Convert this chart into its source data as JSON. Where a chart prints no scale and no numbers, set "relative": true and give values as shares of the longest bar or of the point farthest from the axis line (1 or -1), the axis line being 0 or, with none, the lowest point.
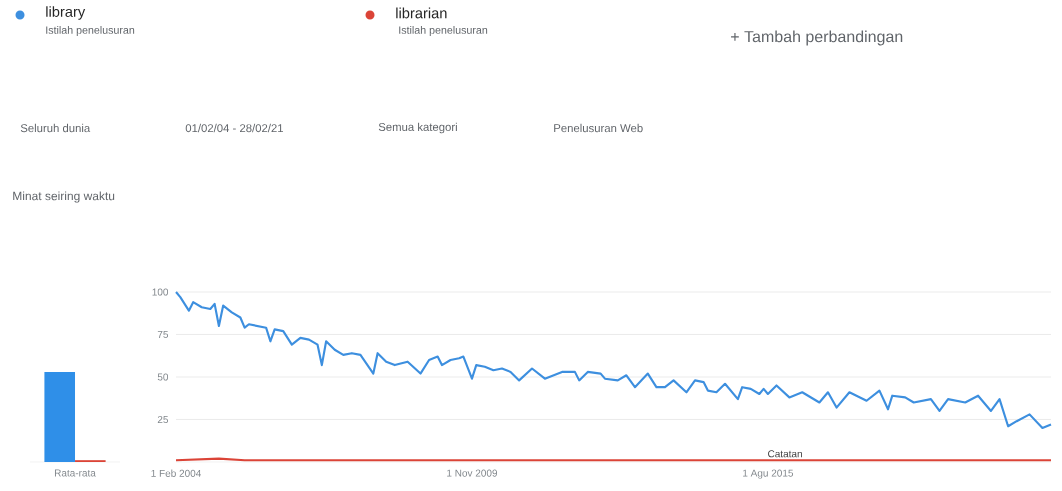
{
  "chart_data": [
    {
      "type": "bar",
      "categories": [
        "Rata-rata"
      ],
      "relative": true,
      "series": [
        {
          "color": "#2f8fe8",
          "values": [
            1
          ]
        },
        {
          "color": "#db4437",
          "values": [
            0.02
          ]
        }
      ]
    },
    {
      "type": "line",
      "title": "Minat seiring waktu",
      "legend": "top",
      "grid": "y",
      "annotations": [
        "Istilah penelusuran",
        "Istilah penelusuran",
        "+   Tambah perbandingan",
        "Seluruh dunia",
        "01/02/04 - 28/02/21",
        "Semua kategori",
        "Penelusuran Web",
        {
          "text": "Catatan",
          "x": "2015-12",
          "y": 1
        }
      ],
      "xlim": [
        "2004-02",
        "2021-02"
      ],
      "ylim": [
        0,
        100
      ],
      "xticks": [
        {
          "value": "2004-02-01",
          "label": "1 Feb 2004"
        },
        {
          "value": "2009-11-01",
          "label": "1 Nov 2009"
        },
        {
          "value": "2015-08-01",
          "label": "1 Agu 2015"
        }
      ],
      "yticks": [
        25,
        50,
        75,
        100
      ],
      "series": [
        {
          "name": "library",
          "color": "#3d8fdf",
          "x": [
            "2004-02",
            "2004-03",
            "2004-05",
            "2004-06",
            "2004-08",
            "2004-10",
            "2004-11",
            "2004-12",
            "2005-01",
            "2005-03",
            "2005-05",
            "2005-06",
            "2005-07",
            "2005-09",
            "2005-11",
            "2005-12",
            "2006-01",
            "2006-03",
            "2006-05",
            "2006-07",
            "2006-09",
            "2006-11",
            "2006-12",
            "2007-01",
            "2007-03",
            "2007-05",
            "2007-07",
            "2007-09",
            "2007-12",
            "2008-01",
            "2008-03",
            "2008-05",
            "2008-08",
            "2008-11",
            "2009-01",
            "2009-03",
            "2009-04",
            "2009-06",
            "2009-08",
            "2009-09",
            "2009-11",
            "2009-12",
            "2010-02",
            "2010-04",
            "2010-06",
            "2010-08",
            "2010-10",
            "2011-01",
            "2011-04",
            "2011-08",
            "2011-11",
            "2011-12",
            "2012-02",
            "2012-05",
            "2012-06",
            "2012-09",
            "2012-11",
            "2013-01",
            "2013-04",
            "2013-06",
            "2013-08",
            "2013-10",
            "2014-01",
            "2014-03",
            "2014-05",
            "2014-06",
            "2014-08",
            "2014-10",
            "2015-01",
            "2015-02",
            "2015-04",
            "2015-06",
            "2015-07",
            "2015-08",
            "2015-10",
            "2016-01",
            "2016-04",
            "2016-08",
            "2016-10",
            "2016-12",
            "2017-03",
            "2017-07",
            "2017-10",
            "2017-12",
            "2018-01",
            "2018-04",
            "2018-06",
            "2018-10",
            "2018-12",
            "2019-02",
            "2019-06",
            "2019-09",
            "2019-12",
            "2020-02",
            "2020-04",
            "2020-06",
            "2020-09",
            "2020-12",
            "2021-02"
          ],
          "values": [
            100,
            97,
            89,
            94,
            91,
            90,
            93,
            80,
            92,
            88,
            85,
            79,
            81,
            80,
            79,
            71,
            78,
            77,
            69,
            73,
            72,
            69,
            57,
            71,
            66,
            63,
            64,
            63,
            52,
            64,
            59,
            57,
            59,
            52,
            60,
            62,
            57,
            60,
            61,
            62,
            49,
            57,
            56,
            54,
            55,
            53,
            48,
            55,
            49,
            53,
            53,
            48,
            53,
            52,
            49,
            48,
            51,
            44,
            52,
            44,
            44,
            48,
            41,
            48,
            47,
            42,
            41,
            46,
            37,
            44,
            43,
            40,
            43,
            40,
            45,
            38,
            41,
            35,
            41,
            32,
            41,
            36,
            42,
            31,
            39,
            38,
            35,
            37,
            30,
            37,
            35,
            39,
            30,
            37,
            21,
            24,
            28,
            20,
            22
          ]
        },
        {
          "name": "librarian",
          "color": "#db4437",
          "x": [
            "2004-02",
            "2004-12",
            "2005-06",
            "2021-02"
          ],
          "values": [
            1,
            2,
            1,
            1
          ]
        }
      ]
    }
  ]
}
